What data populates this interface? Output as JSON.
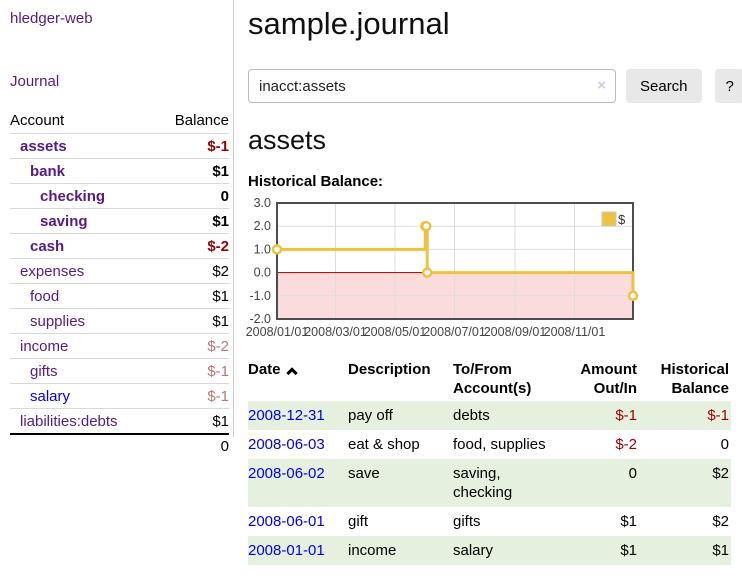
{
  "sidebar": {
    "app_title": "hledger-web",
    "nav": {
      "journal": "Journal"
    },
    "accounts": {
      "headers": {
        "account": "Account",
        "balance": "Balance"
      },
      "rows": [
        {
          "name": "assets",
          "balance": "$-1"
        },
        {
          "name": "bank",
          "balance": "$1"
        },
        {
          "name": "checking",
          "balance": "0"
        },
        {
          "name": "saving",
          "balance": "$1"
        },
        {
          "name": "cash",
          "balance": "$-2"
        },
        {
          "name": "expenses",
          "balance": "$2"
        },
        {
          "name": "food",
          "balance": "$1"
        },
        {
          "name": "supplies",
          "balance": "$1"
        },
        {
          "name": "income",
          "balance": "$-2"
        },
        {
          "name": "gifts",
          "balance": "$-1"
        },
        {
          "name": "salary",
          "balance": "$-1"
        },
        {
          "name": "liabilities:debts",
          "balance": "$1"
        }
      ],
      "total": "0"
    }
  },
  "main": {
    "title": "sample.journal",
    "search": {
      "value": "inacct:assets",
      "clear_icon": "×",
      "search_button": "Search",
      "help_button": "?"
    },
    "heading": "assets",
    "chart_title": "Historical Balance:"
  },
  "chart_data": {
    "type": "line",
    "step": true,
    "title": "Historical Balance",
    "x_range": [
      "2008-01-01",
      "2008-12-31"
    ],
    "ylim": [
      -2,
      3
    ],
    "yticks": [
      3,
      2,
      1,
      0,
      -1,
      -2
    ],
    "ytick_labels": [
      "3.0",
      "2.0",
      "1.0",
      "0.0",
      "-1.0",
      "-2.0"
    ],
    "xticks": [
      {
        "label": "2008/01/01",
        "date": "2008-01-01"
      },
      {
        "label": "2008/03/01",
        "date": "2008-03-01"
      },
      {
        "label": "2008/05/01",
        "date": "2008-05-01"
      },
      {
        "label": "2008/07/01",
        "date": "2008-07-01"
      },
      {
        "label": "2008/09/01",
        "date": "2008-09-01"
      },
      {
        "label": "2008/11/01",
        "date": "2008-11-01"
      }
    ],
    "series": [
      {
        "name": "$",
        "color": "#edc240",
        "x": [
          "2008-01-01",
          "2008-06-01",
          "2008-06-02",
          "2008-06-03",
          "2008-12-31"
        ],
        "y": [
          1,
          2,
          2,
          0,
          -1
        ]
      }
    ],
    "legend": {
      "label": "$",
      "color": "#edc240",
      "position": "top-right"
    },
    "colors": {
      "grid": "#dddddd",
      "border": "#4d4d4d",
      "zero_line": "#9d0000",
      "negative_fill": "#fbdcdc",
      "marker_fill": "#ffffff",
      "tick_text": "#444444"
    }
  },
  "register": {
    "headers": {
      "date": "Date",
      "description": "Description",
      "accounts": "To/From Account(s)",
      "amount": "Amount Out/In",
      "balance": "Historical Balance"
    },
    "rows": [
      {
        "date": "2008-12-31",
        "description": "pay off",
        "accounts": "debts",
        "amount": "$-1",
        "balance": "$-1"
      },
      {
        "date": "2008-06-03",
        "description": "eat & shop",
        "accounts": "food, supplies",
        "amount": "$-2",
        "balance": "0"
      },
      {
        "date": "2008-06-02",
        "description": "save",
        "accounts": "saving, checking",
        "amount": "0",
        "balance": "$2"
      },
      {
        "date": "2008-06-01",
        "description": "gift",
        "accounts": "gifts",
        "amount": "$1",
        "balance": "$2"
      },
      {
        "date": "2008-01-01",
        "description": "income",
        "accounts": "salary",
        "amount": "$1",
        "balance": "$1"
      }
    ]
  }
}
